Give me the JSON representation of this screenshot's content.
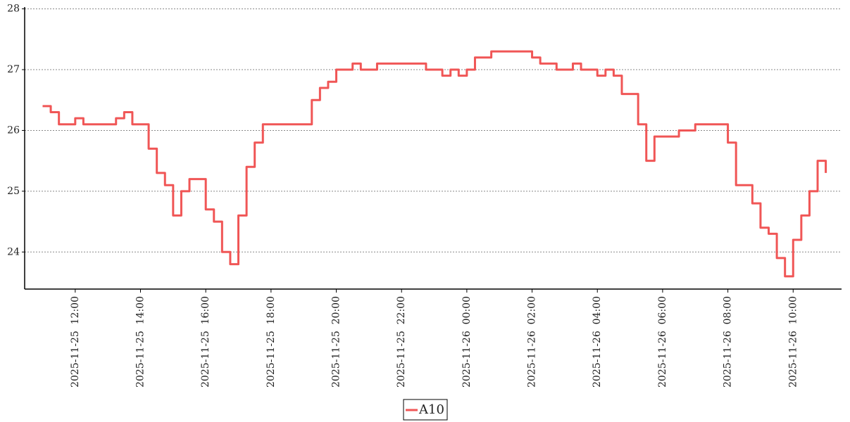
{
  "chart_data": {
    "type": "line",
    "drawstyle": "steps-post",
    "x": [
      "2025-11-25 11:00",
      "2025-11-25 11:15",
      "2025-11-25 11:30",
      "2025-11-25 11:45",
      "2025-11-25 12:00",
      "2025-11-25 12:15",
      "2025-11-25 12:30",
      "2025-11-25 12:45",
      "2025-11-25 13:00",
      "2025-11-25 13:15",
      "2025-11-25 13:30",
      "2025-11-25 13:45",
      "2025-11-25 14:00",
      "2025-11-25 14:15",
      "2025-11-25 14:30",
      "2025-11-25 14:45",
      "2025-11-25 15:00",
      "2025-11-25 15:15",
      "2025-11-25 15:30",
      "2025-11-25 15:45",
      "2025-11-25 16:00",
      "2025-11-25 16:15",
      "2025-11-25 16:30",
      "2025-11-25 16:45",
      "2025-11-25 17:00",
      "2025-11-25 17:15",
      "2025-11-25 17:30",
      "2025-11-25 17:45",
      "2025-11-25 18:00",
      "2025-11-25 18:15",
      "2025-11-25 18:30",
      "2025-11-25 18:45",
      "2025-11-25 19:00",
      "2025-11-25 19:15",
      "2025-11-25 19:30",
      "2025-11-25 19:45",
      "2025-11-25 20:00",
      "2025-11-25 20:15",
      "2025-11-25 20:30",
      "2025-11-25 20:45",
      "2025-11-25 21:00",
      "2025-11-25 21:15",
      "2025-11-25 21:30",
      "2025-11-25 21:45",
      "2025-11-25 22:00",
      "2025-11-25 22:15",
      "2025-11-25 22:30",
      "2025-11-25 22:45",
      "2025-11-25 23:00",
      "2025-11-25 23:15",
      "2025-11-25 23:30",
      "2025-11-25 23:45",
      "2025-11-26 00:00",
      "2025-11-26 00:15",
      "2025-11-26 00:30",
      "2025-11-26 00:45",
      "2025-11-26 01:00",
      "2025-11-26 01:15",
      "2025-11-26 01:30",
      "2025-11-26 01:45",
      "2025-11-26 02:00",
      "2025-11-26 02:15",
      "2025-11-26 02:30",
      "2025-11-26 02:45",
      "2025-11-26 03:00",
      "2025-11-26 03:15",
      "2025-11-26 03:30",
      "2025-11-26 03:45",
      "2025-11-26 04:00",
      "2025-11-26 04:15",
      "2025-11-26 04:30",
      "2025-11-26 04:45",
      "2025-11-26 05:00",
      "2025-11-26 05:15",
      "2025-11-26 05:30",
      "2025-11-26 05:45",
      "2025-11-26 06:00",
      "2025-11-26 06:15",
      "2025-11-26 06:30",
      "2025-11-26 06:45",
      "2025-11-26 07:00",
      "2025-11-26 07:15",
      "2025-11-26 07:30",
      "2025-11-26 07:45",
      "2025-11-26 08:00",
      "2025-11-26 08:15",
      "2025-11-26 08:30",
      "2025-11-26 08:45",
      "2025-11-26 09:00",
      "2025-11-26 09:15",
      "2025-11-26 09:30",
      "2025-11-26 09:45",
      "2025-11-26 10:00",
      "2025-11-26 10:15",
      "2025-11-26 10:30",
      "2025-11-26 10:45",
      "2025-11-26 11:00"
    ],
    "series": [
      {
        "name": "A10",
        "color": "#f05656",
        "values": [
          26.4,
          26.3,
          26.1,
          26.1,
          26.2,
          26.1,
          26.1,
          26.1,
          26.1,
          26.2,
          26.3,
          26.1,
          26.1,
          25.7,
          25.3,
          25.1,
          24.6,
          25.0,
          25.2,
          25.2,
          24.7,
          24.5,
          24.0,
          23.8,
          24.6,
          25.4,
          25.8,
          26.1,
          26.1,
          26.1,
          26.1,
          26.1,
          26.1,
          26.5,
          26.7,
          26.8,
          27.0,
          27.0,
          27.1,
          27.0,
          27.0,
          27.1,
          27.1,
          27.1,
          27.1,
          27.1,
          27.1,
          27.0,
          27.0,
          26.9,
          27.0,
          26.9,
          27.0,
          27.2,
          27.2,
          27.3,
          27.3,
          27.3,
          27.3,
          27.3,
          27.2,
          27.1,
          27.1,
          27.0,
          27.0,
          27.1,
          27.0,
          27.0,
          26.9,
          27.0,
          26.9,
          26.6,
          26.6,
          26.1,
          25.5,
          25.9,
          25.9,
          25.9,
          26.0,
          26.0,
          26.1,
          26.1,
          26.1,
          26.1,
          25.8,
          25.1,
          25.1,
          24.8,
          24.4,
          24.3,
          23.9,
          23.6,
          24.2,
          24.6,
          25.0,
          25.5,
          25.3
        ]
      }
    ],
    "xlim": [
      "2025-11-25 10:27",
      "2025-11-26 11:29"
    ],
    "xticks": [
      {
        "value": "2025-11-25 12:00",
        "label": "2025-11-25  12:00"
      },
      {
        "value": "2025-11-25 14:00",
        "label": "2025-11-25  14:00"
      },
      {
        "value": "2025-11-25 16:00",
        "label": "2025-11-25  16:00"
      },
      {
        "value": "2025-11-25 18:00",
        "label": "2025-11-25  18:00"
      },
      {
        "value": "2025-11-25 20:00",
        "label": "2025-11-25  20:00"
      },
      {
        "value": "2025-11-25 22:00",
        "label": "2025-11-25  22:00"
      },
      {
        "value": "2025-11-26 00:00",
        "label": "2025-11-26  00:00"
      },
      {
        "value": "2025-11-26 02:00",
        "label": "2025-11-26  02:00"
      },
      {
        "value": "2025-11-26 04:00",
        "label": "2025-11-26  04:00"
      },
      {
        "value": "2025-11-26 06:00",
        "label": "2025-11-26  06:00"
      },
      {
        "value": "2025-11-26 08:00",
        "label": "2025-11-26  08:00"
      },
      {
        "value": "2025-11-26 10:00",
        "label": "2025-11-26  10:00"
      }
    ],
    "ylim": [
      23.39,
      28.03
    ],
    "yticks": [
      24,
      25,
      26,
      27,
      28
    ],
    "grid": true,
    "legend": "bottom"
  }
}
